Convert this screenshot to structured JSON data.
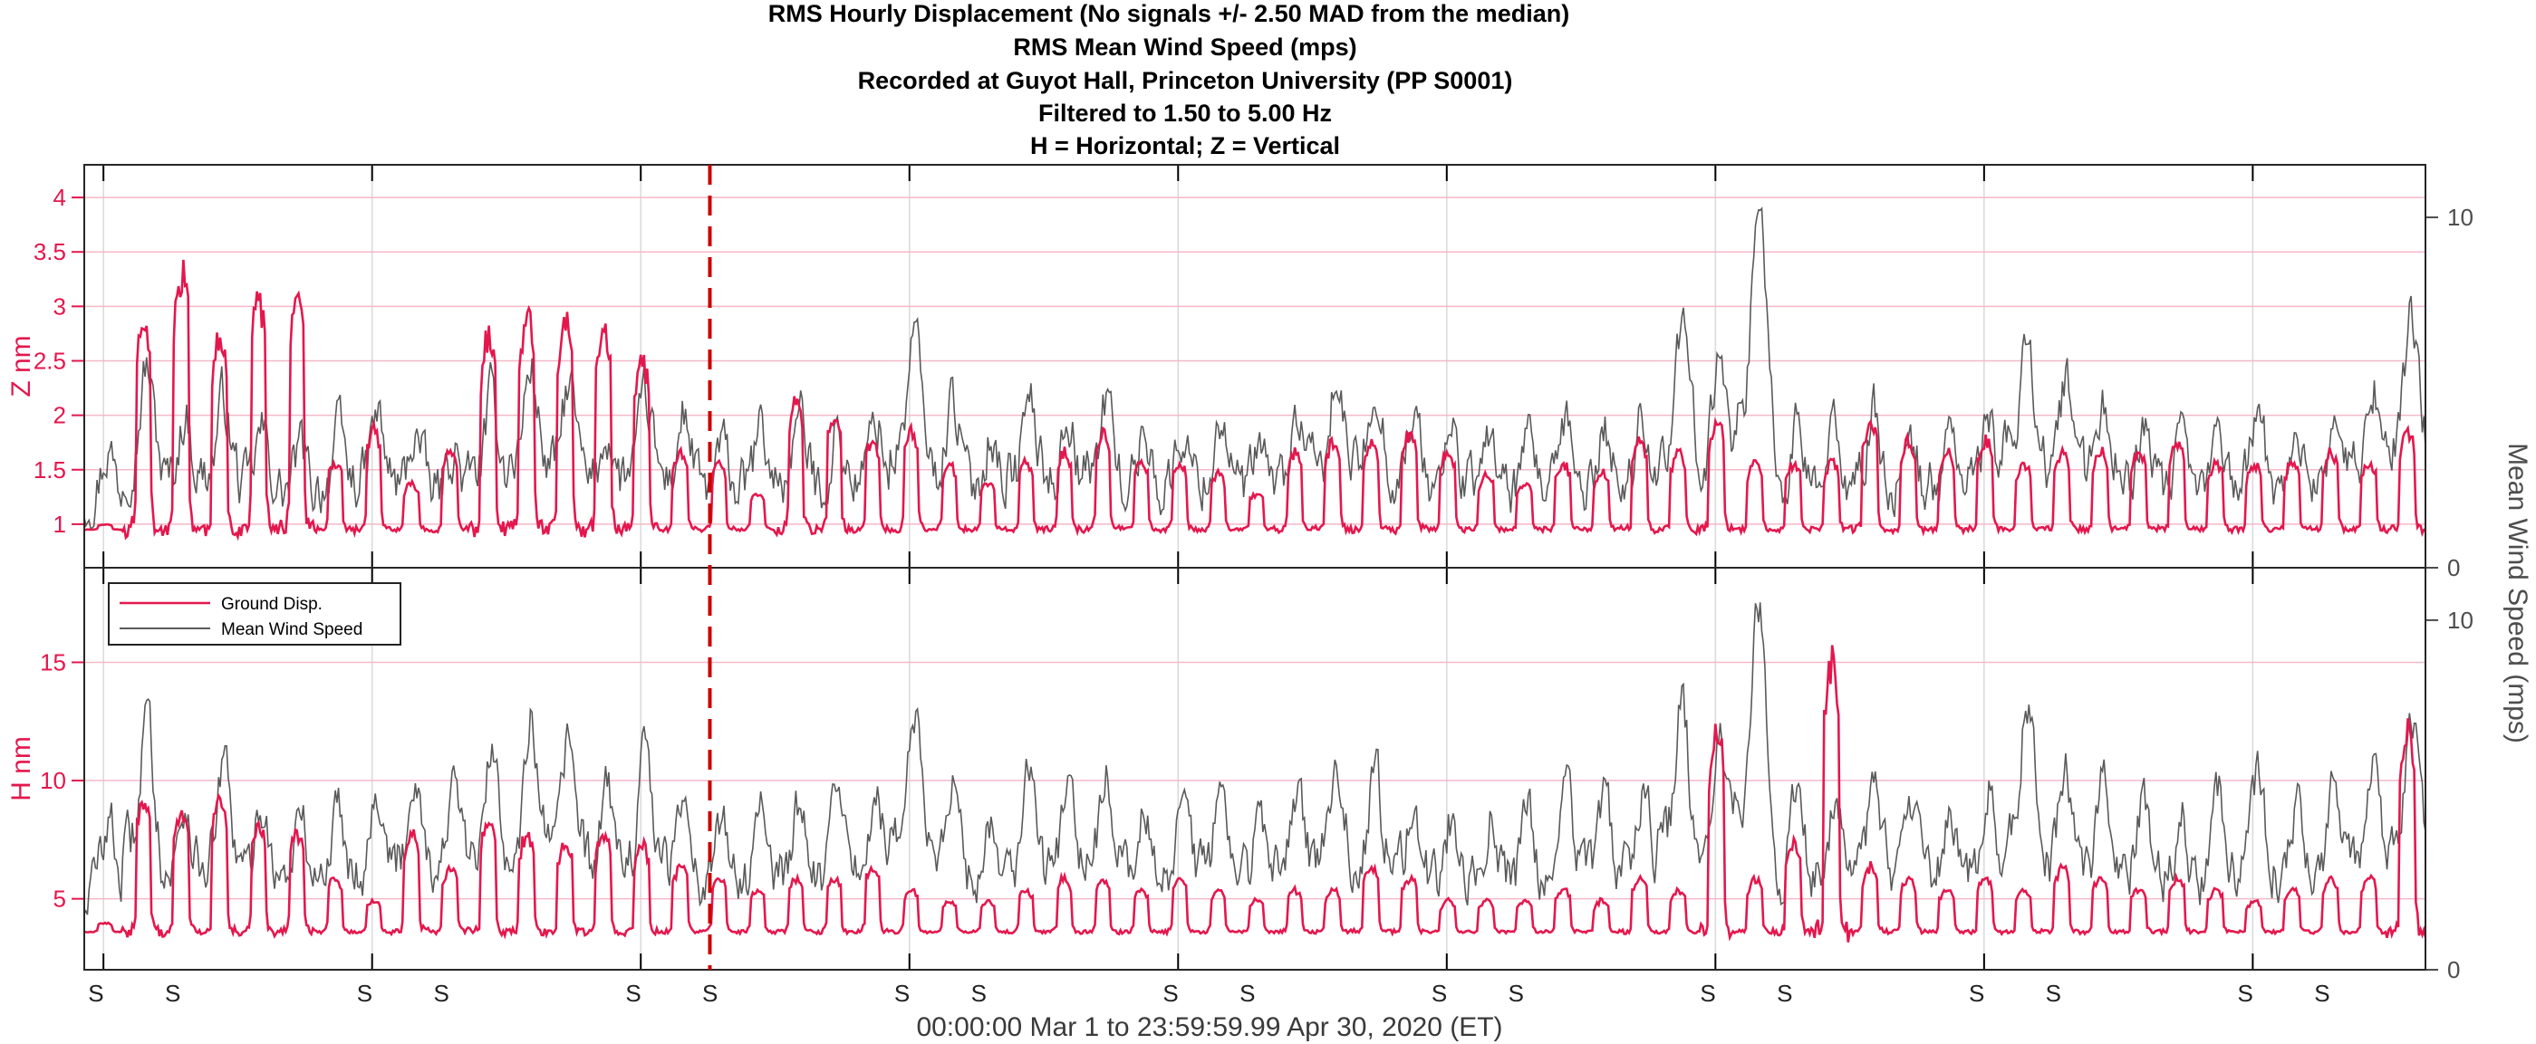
{
  "titles": [
    "RMS Hourly Displacement  (No signals +/- 2.50 MAD from the median)",
    "RMS Mean Wind Speed (mps)",
    "Recorded at Guyot Hall, Princeton University (PP S0001)",
    "Filtered to 1.50 to 5.00 Hz",
    "H = Horizontal; Z = Vertical"
  ],
  "xlabel": "00:00:00 Mar 1 to 23:59:59.99 Apr 30, 2020 (ET)",
  "colors": {
    "disp": "#e4174d",
    "wind": "#5a5a5a",
    "marker": "#cc0000",
    "grid": "#f4b8c8",
    "vgrid": "#d9d9d9"
  },
  "legend": [
    "Ground Disp.",
    "Mean Wind Speed"
  ],
  "sunday_label": "S",
  "chart_data": [
    {
      "type": "line",
      "panel": "Z",
      "ylabel": "Z nm",
      "y2label": "Mean Wind Speed (mps)",
      "ylim": [
        0.6,
        4.3
      ],
      "yticks": [
        1,
        1.5,
        2,
        2.5,
        3,
        3.5,
        4
      ],
      "yticklabels": [
        "1",
        "1.5",
        "2",
        "2.5",
        "3",
        "3.5",
        "4"
      ],
      "y2lim": [
        0,
        11.5
      ],
      "y2ticks": [
        0,
        10
      ],
      "y2ticklabels": [
        "0",
        "10"
      ],
      "series": [
        {
          "name": "Ground Disp.",
          "axis": "left",
          "daily_peaks": [
            1.0,
            3.0,
            3.5,
            2.8,
            3.2,
            3.2,
            1.6,
            1.9,
            1.4,
            1.7,
            2.8,
            3.0,
            3.0,
            2.9,
            2.6,
            1.7,
            1.6,
            1.3,
            2.2,
            2.0,
            1.8,
            1.9,
            1.6,
            1.4,
            1.6,
            1.7,
            1.9,
            1.6,
            1.6,
            1.5,
            1.3,
            1.7,
            1.8,
            1.8,
            1.9,
            1.7,
            1.5,
            1.4,
            1.6,
            1.5,
            1.8,
            1.7,
            2.0,
            1.6,
            1.6,
            1.6,
            2.0,
            1.8,
            1.7,
            1.8,
            1.6,
            1.7,
            1.7,
            1.7,
            1.8,
            1.6,
            1.6,
            1.6,
            1.7,
            1.6,
            1.9
          ]
        },
        {
          "name": "Mean Wind Speed",
          "axis": "right",
          "daily_peaks": [
            3.5,
            6.0,
            4.5,
            5.0,
            4.0,
            3.5,
            4.0,
            4.5,
            4.0,
            3.5,
            5.0,
            6.0,
            5.5,
            4.0,
            5.0,
            4.5,
            3.5,
            4.0,
            4.5,
            4.0,
            4.5,
            7.0,
            5.0,
            4.0,
            5.0,
            4.5,
            5.0,
            4.0,
            4.0,
            4.5,
            3.5,
            4.5,
            5.5,
            5.5,
            4.5,
            4.0,
            4.0,
            3.5,
            4.0,
            4.0,
            4.5,
            7.0,
            6.5,
            11.0,
            4.0,
            4.0,
            4.5,
            3.5,
            4.0,
            4.5,
            7.0,
            5.5,
            5.0,
            4.0,
            3.5,
            4.0,
            4.5,
            4.0,
            4.5,
            5.5,
            7.5
          ]
        }
      ]
    },
    {
      "type": "line",
      "panel": "H",
      "ylabel": "H nm",
      "y2label": "Mean Wind Speed (mps)",
      "ylim": [
        2.0,
        19.0
      ],
      "yticks": [
        5,
        10,
        15
      ],
      "yticklabels": [
        "5",
        "10",
        "15"
      ],
      "y2lim": [
        0,
        11.5
      ],
      "y2ticks": [
        0,
        10
      ],
      "y2ticklabels": [
        "0",
        "10"
      ],
      "series": [
        {
          "name": "Ground Disp.",
          "axis": "left",
          "daily_peaks": [
            4.0,
            9.5,
            9.0,
            9.5,
            8.5,
            8.0,
            6.0,
            5.0,
            8.0,
            6.5,
            8.5,
            8.0,
            7.5,
            8.0,
            7.5,
            6.5,
            6.0,
            5.5,
            6.0,
            6.0,
            6.5,
            5.5,
            5.0,
            5.0,
            5.5,
            6.0,
            6.0,
            5.5,
            6.0,
            5.5,
            5.0,
            5.5,
            5.5,
            6.5,
            6.0,
            5.0,
            5.0,
            5.0,
            5.5,
            5.0,
            6.0,
            5.5,
            12.5,
            6.0,
            7.5,
            16.0,
            6.5,
            6.0,
            5.5,
            6.0,
            5.5,
            6.5,
            6.0,
            5.5,
            6.0,
            5.5,
            5.0,
            5.5,
            6.0,
            6.0,
            12.5
          ]
        },
        {
          "name": "Mean Wind Speed",
          "axis": "right",
          "daily_peaks": [
            4.5,
            7.5,
            5.0,
            6.0,
            5.0,
            4.5,
            5.0,
            5.5,
            6.0,
            5.5,
            6.5,
            7.5,
            7.0,
            5.5,
            6.5,
            5.5,
            4.5,
            5.0,
            5.0,
            5.0,
            5.5,
            8.0,
            6.0,
            4.5,
            6.0,
            5.5,
            6.0,
            5.0,
            5.0,
            5.5,
            4.5,
            5.5,
            6.5,
            6.0,
            5.0,
            4.5,
            4.5,
            4.5,
            5.0,
            5.0,
            5.5,
            8.0,
            7.0,
            11.0,
            5.0,
            5.0,
            5.5,
            4.5,
            5.0,
            5.5,
            8.0,
            6.0,
            5.5,
            5.0,
            4.5,
            5.0,
            5.5,
            5.0,
            5.5,
            6.5,
            7.5
          ]
        }
      ]
    }
  ],
  "timeline": {
    "days": 61,
    "marker_day": 16.3,
    "sunday_days": [
      0,
      7,
      14,
      21,
      28,
      35,
      42,
      49,
      56
    ],
    "week_lines": [
      1,
      8,
      15,
      22,
      29,
      36,
      43,
      50,
      57
    ]
  }
}
